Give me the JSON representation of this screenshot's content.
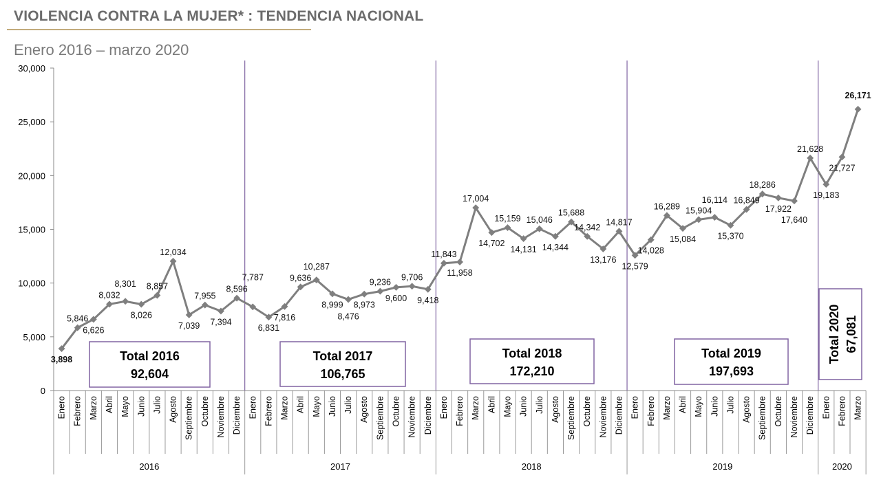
{
  "title": "VIOLENCIA CONTRA LA MUJER* : TENDENCIA NACIONAL",
  "subtitle": "Enero 2016 – marzo 2020",
  "chart_data": {
    "type": "line",
    "ylim": [
      0,
      30000
    ],
    "yticks": [
      "0",
      "5,000",
      "10,000",
      "15,000",
      "20,000",
      "25,000",
      "30,000"
    ],
    "grid": false,
    "colors": {
      "line": "#7f7f7f",
      "divider": "#8064a2",
      "first_label": "#00b050",
      "last_label": "#c00000"
    },
    "years": [
      {
        "year": "2016",
        "months": [
          "Enero",
          "Febrero",
          "Marzo",
          "Abril",
          "Mayo",
          "Junio",
          "Julio",
          "Agosto",
          "Septiembre",
          "Octubre",
          "Noviembre",
          "Diciembre"
        ],
        "values": [
          3898,
          5846,
          6626,
          8032,
          8301,
          8026,
          8857,
          12034,
          7039,
          7955,
          7394,
          8596
        ],
        "total_label": "Total 2016",
        "total": "92,604"
      },
      {
        "year": "2017",
        "months": [
          "Enero",
          "Febrero",
          "Marzo",
          "Abril",
          "Mayo",
          "Junio",
          "Julio",
          "Agosto",
          "Septiembre",
          "Octubre",
          "Noviembre",
          "Diciembre"
        ],
        "values": [
          7787,
          6831,
          7816,
          9636,
          10287,
          8999,
          8476,
          8973,
          9236,
          9600,
          9706,
          9418
        ],
        "total_label": "Total 2017",
        "total": "106,765"
      },
      {
        "year": "2018",
        "months": [
          "Enero",
          "Febrero",
          "Marzo",
          "Abril",
          "Mayo",
          "Junio",
          "Julio",
          "Agosto",
          "Septiembre",
          "Octubre",
          "Noviembre",
          "Diciembre"
        ],
        "values": [
          11843,
          11958,
          17004,
          14702,
          15159,
          14131,
          15046,
          14344,
          15688,
          14342,
          13176,
          14817
        ],
        "total_label": "Total 2018",
        "total": "172,210"
      },
      {
        "year": "2019",
        "months": [
          "Enero",
          "Febrero",
          "Marzo",
          "Abril",
          "Mayo",
          "Junio",
          "Julio",
          "Agosto",
          "Septiembre",
          "Octubre",
          "Noviembre",
          "Diciembre"
        ],
        "values": [
          12579,
          14028,
          16289,
          15084,
          15904,
          16114,
          15370,
          16849,
          18286,
          17922,
          17640,
          21628
        ],
        "total_label": "Total 2019",
        "total": "197,693"
      },
      {
        "year": "2020",
        "months": [
          "Enero",
          "Febrero",
          "Marzo"
        ],
        "values": [
          19183,
          21727,
          26171
        ],
        "total_label": "Total 2020",
        "total": "67,081"
      }
    ]
  }
}
